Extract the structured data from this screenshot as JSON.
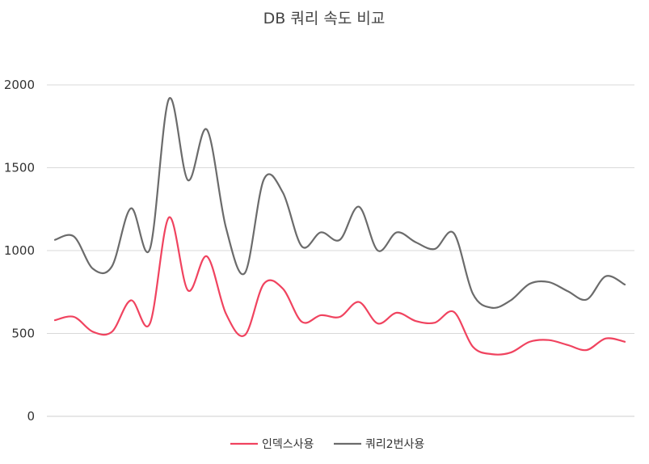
{
  "chart_data": {
    "type": "line",
    "title": "DB 쿼리 속도 비교",
    "xlabel": "",
    "ylabel": "",
    "ylim": [
      0,
      2000
    ],
    "yticks": [
      "0",
      "500",
      "1000",
      "1500",
      "2000"
    ],
    "grid": true,
    "legend_position": "bottom",
    "smooth": true,
    "series": [
      {
        "name": "인덱스사용",
        "color": "#f0435f",
        "values": [
          580,
          600,
          510,
          510,
          700,
          560,
          1200,
          760,
          965,
          620,
          490,
          800,
          770,
          570,
          610,
          600,
          690,
          560,
          625,
          575,
          565,
          630,
          420,
          375,
          385,
          450,
          460,
          430,
          400,
          470,
          450
        ]
      },
      {
        "name": "쿼리2번사용",
        "color": "#6b6b6b",
        "values": [
          1065,
          1085,
          890,
          905,
          1255,
          1010,
          1915,
          1425,
          1730,
          1140,
          865,
          1430,
          1350,
          1025,
          1110,
          1065,
          1265,
          1000,
          1110,
          1050,
          1010,
          1105,
          740,
          655,
          700,
          800,
          810,
          755,
          705,
          845,
          795
        ]
      }
    ]
  }
}
